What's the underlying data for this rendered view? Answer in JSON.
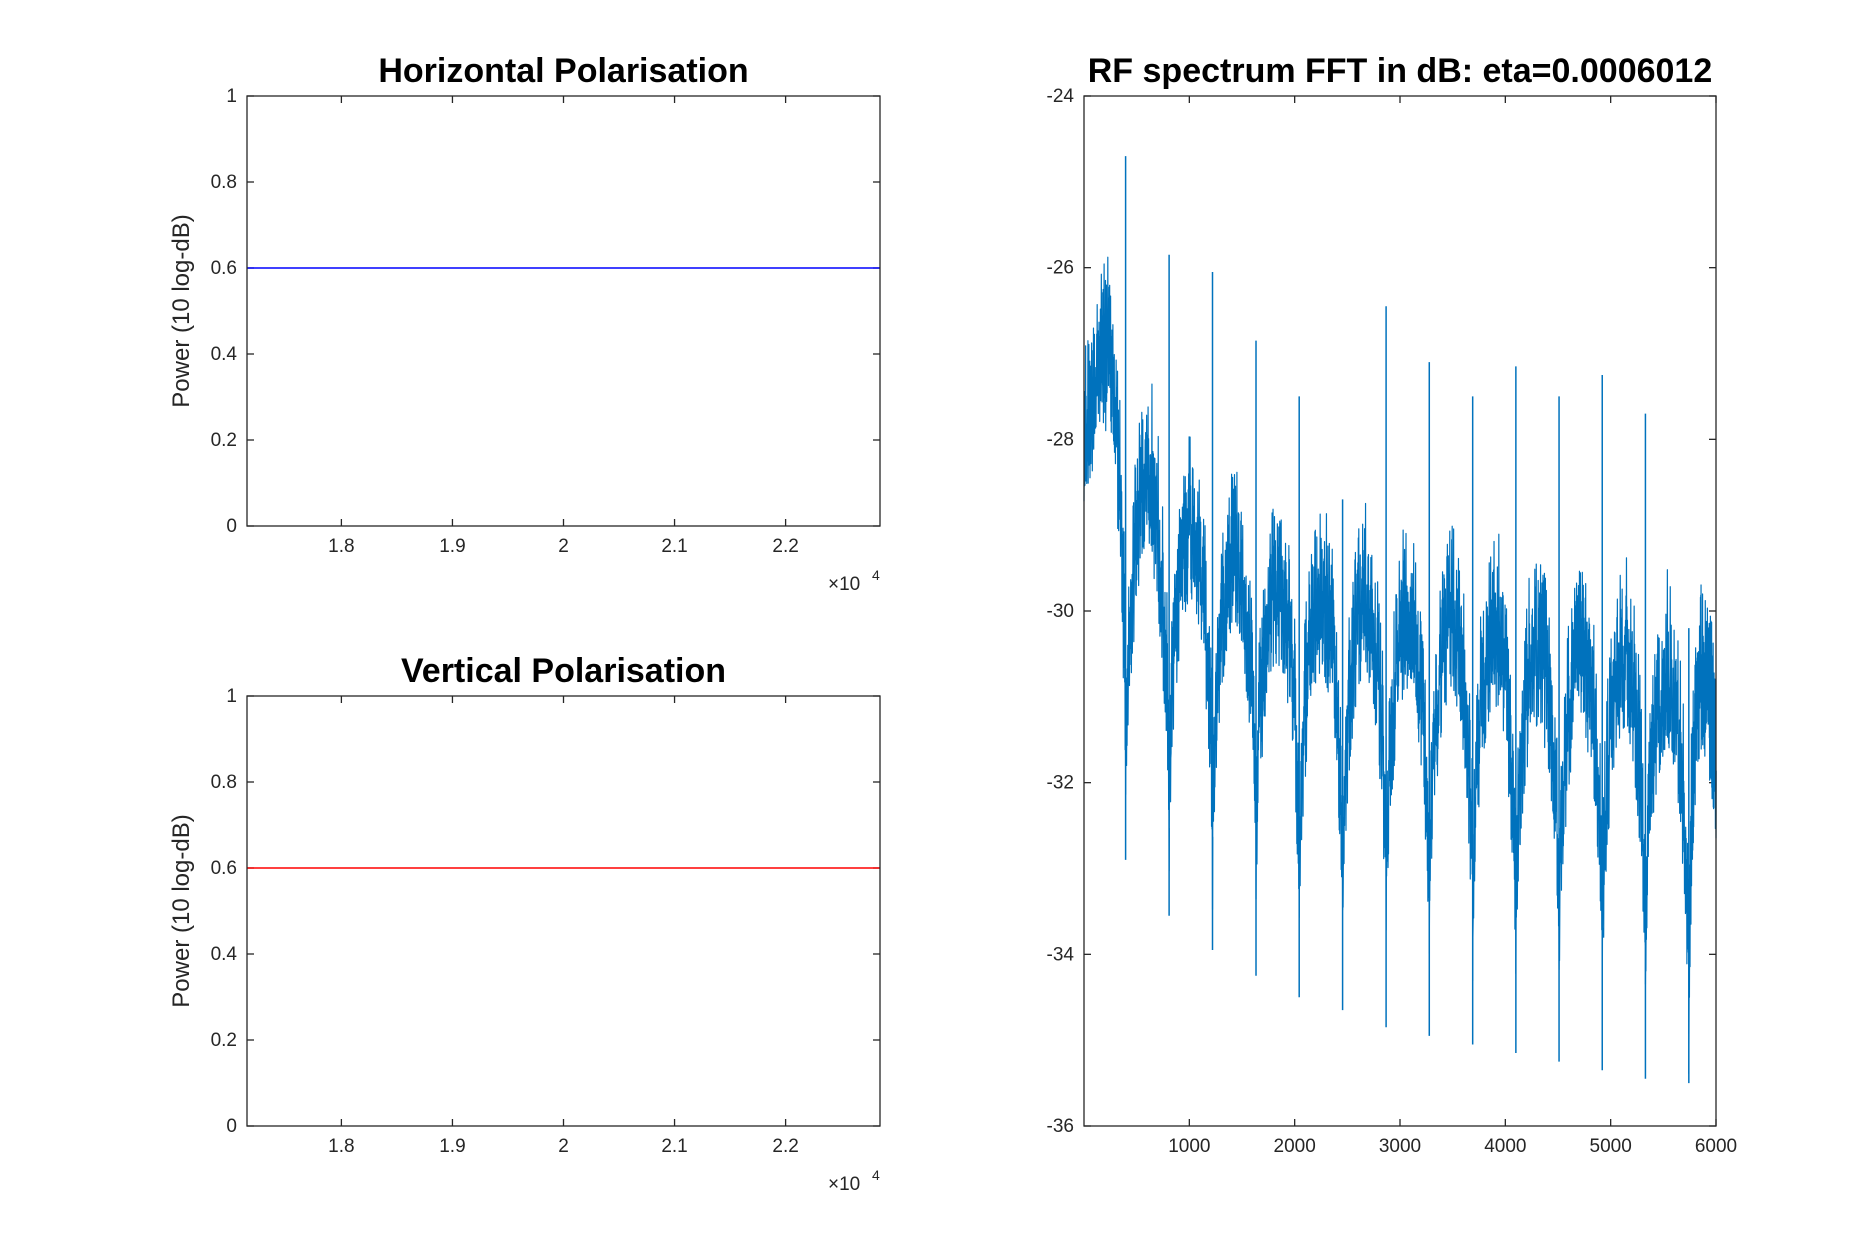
{
  "chart_data": [
    {
      "type": "line",
      "title": "Horizontal Polarisation",
      "xlabel": "",
      "ylabel": "Power (10 log-dB)",
      "xlim": [
        17150,
        22850
      ],
      "ylim": [
        0,
        1
      ],
      "x_ticks": [
        18000,
        19000,
        20000,
        21000,
        22000
      ],
      "x_tick_labels": [
        "1.8",
        "1.9",
        "2",
        "2.1",
        "2.2"
      ],
      "x_exponent": "×10",
      "x_exponent_power": "4",
      "y_ticks": [
        0,
        0.2,
        0.4,
        0.6,
        0.8,
        1
      ],
      "y_tick_labels": [
        "0",
        "0.2",
        "0.4",
        "0.6",
        "0.8",
        "1"
      ],
      "color": "#0000ff",
      "series": [
        {
          "x": [
            17150,
            22850
          ],
          "y": [
            0.6,
            0.6
          ]
        }
      ],
      "grid": false
    },
    {
      "type": "line",
      "title": "Vertical Polarisation",
      "xlabel": "",
      "ylabel": "Power (10 log-dB)",
      "xlim": [
        17150,
        22850
      ],
      "ylim": [
        0,
        1
      ],
      "x_ticks": [
        18000,
        19000,
        20000,
        21000,
        22000
      ],
      "x_tick_labels": [
        "1.8",
        "1.9",
        "2",
        "2.1",
        "2.2"
      ],
      "x_exponent": "×10",
      "x_exponent_power": "4",
      "y_ticks": [
        0,
        0.2,
        0.4,
        0.6,
        0.8,
        1
      ],
      "y_tick_labels": [
        "0",
        "0.2",
        "0.4",
        "0.6",
        "0.8",
        "1"
      ],
      "color": "#ff0000",
      "series": [
        {
          "x": [
            17150,
            22850
          ],
          "y": [
            0.6,
            0.6
          ]
        }
      ],
      "grid": false
    },
    {
      "type": "line",
      "title": "RF spectrum FFT in dB: eta=0.0006012",
      "xlabel": "",
      "ylabel": "",
      "xlim": [
        0,
        6000
      ],
      "ylim": [
        -36,
        -24
      ],
      "x_ticks": [
        1000,
        2000,
        3000,
        4000,
        5000,
        6000
      ],
      "x_tick_labels": [
        "1000",
        "2000",
        "3000",
        "4000",
        "5000",
        "6000"
      ],
      "y_ticks": [
        -36,
        -34,
        -32,
        -30,
        -28,
        -26,
        -24
      ],
      "y_tick_labels": [
        "-36",
        "-34",
        "-32",
        "-30",
        "-28",
        "-26",
        "-24"
      ],
      "color": "#0072bd",
      "grid": false,
      "spikes": [
        {
          "x": 395,
          "top": -24.7,
          "bottom": -32.9
        },
        {
          "x": 808,
          "top": -25.85,
          "bottom": -33.55
        },
        {
          "x": 1220,
          "top": -26.05,
          "bottom": -33.95
        },
        {
          "x": 1633,
          "top": -26.85,
          "bottom": -34.25
        },
        {
          "x": 2043,
          "top": -27.5,
          "bottom": -34.5
        },
        {
          "x": 2455,
          "top": -28.7,
          "bottom": -34.65
        },
        {
          "x": 2868,
          "top": -26.45,
          "bottom": -34.85
        },
        {
          "x": 3278,
          "top": -27.1,
          "bottom": -34.95
        },
        {
          "x": 3690,
          "top": -27.5,
          "bottom": -35.05
        },
        {
          "x": 4100,
          "top": -27.15,
          "bottom": -35.15
        },
        {
          "x": 4510,
          "top": -27.5,
          "bottom": -35.25
        },
        {
          "x": 4920,
          "top": -27.25,
          "bottom": -35.35
        },
        {
          "x": 5330,
          "top": -27.7,
          "bottom": -35.45
        },
        {
          "x": 5742,
          "top": -30.2,
          "bottom": -35.5
        }
      ],
      "envelope": {
        "lobe_tops": [
          {
            "x": 100,
            "y": -26.8
          },
          {
            "x": 600,
            "y": -28.3
          },
          {
            "x": 1010,
            "y": -28.8
          },
          {
            "x": 1420,
            "y": -29.1
          },
          {
            "x": 1840,
            "y": -29.55
          },
          {
            "x": 2250,
            "y": -29.7
          },
          {
            "x": 2660,
            "y": -29.7
          },
          {
            "x": 3070,
            "y": -29.8
          },
          {
            "x": 3480,
            "y": -29.9
          },
          {
            "x": 3890,
            "y": -30.05
          },
          {
            "x": 4300,
            "y": -30.25
          },
          {
            "x": 4710,
            "y": -30.3
          },
          {
            "x": 5120,
            "y": -30.3
          },
          {
            "x": 5530,
            "y": -30.5
          },
          {
            "x": 5950,
            "y": -30.55
          }
        ],
        "lobe_minima": [
          {
            "x": 395,
            "y": -31.8
          },
          {
            "x": 808,
            "y": -32.3
          },
          {
            "x": 1220,
            "y": -32.5
          },
          {
            "x": 1633,
            "y": -32.7
          },
          {
            "x": 2043,
            "y": -32.9
          },
          {
            "x": 2455,
            "y": -33.0
          },
          {
            "x": 2868,
            "y": -33.2
          },
          {
            "x": 3278,
            "y": -33.3
          },
          {
            "x": 3690,
            "y": -33.4
          },
          {
            "x": 4100,
            "y": -33.5
          },
          {
            "x": 4510,
            "y": -33.6
          },
          {
            "x": 4920,
            "y": -33.75
          },
          {
            "x": 5330,
            "y": -33.8
          },
          {
            "x": 5742,
            "y": -34.5
          }
        ],
        "band_width_db": 1.1
      }
    }
  ]
}
